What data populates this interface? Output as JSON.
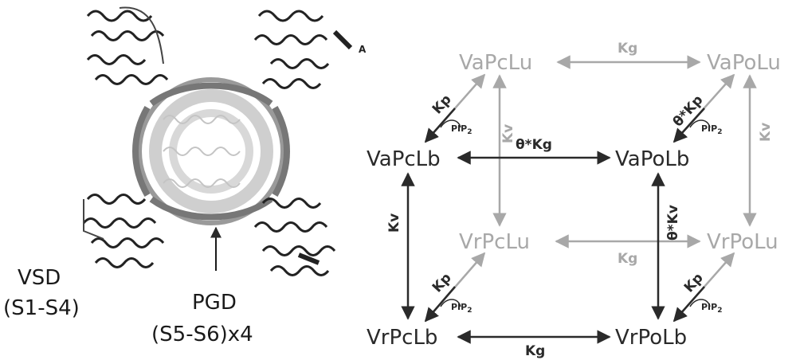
{
  "panel_label": "A",
  "structure": {
    "vsd_label_line1": "VSD",
    "vsd_label_line2": "(S1-S4)",
    "pgd_label_line1": "PGD",
    "pgd_label_line2": "(S5-S6)x4"
  },
  "states": {
    "vapclu": "VaPcLu",
    "vapolu": "VaPoLu",
    "vapclb": "VaPcLb",
    "vapolb": "VaPoLb",
    "vrpclu": "VrPcLu",
    "vrpolu": "VrPoLu",
    "vrpclb": "VrPcLb",
    "vrpolb": "VrPoLb"
  },
  "rates": {
    "kg_top": "Kg",
    "theta_kg": "θ*Kg",
    "kg_mid": "Kg",
    "kg_bottom": "Kg",
    "kv_left_front": "Kv",
    "kv_left_back": "Kv",
    "theta_kv": "θ*Kv",
    "kv_right_back": "Kv",
    "kp_top_left": "Kp",
    "theta_kp": "θ*Kp",
    "kp_bottom_left": "Kp",
    "kp_bottom_right": "Kp"
  },
  "pip_label": "PIP",
  "pip_sub": "2",
  "colors": {
    "dark": "#2a2a2a",
    "light": "#a8a8a8"
  }
}
